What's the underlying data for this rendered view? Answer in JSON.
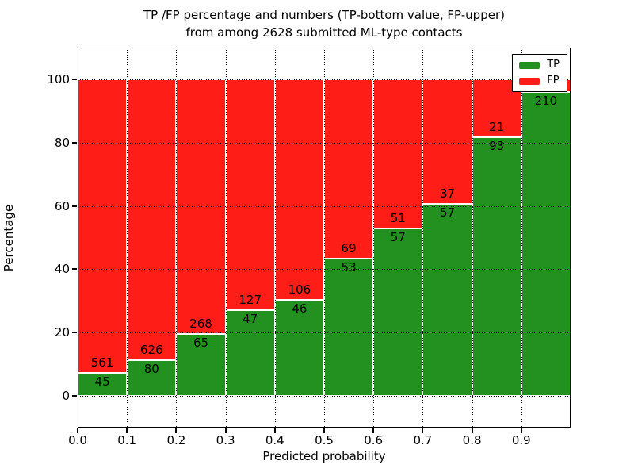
{
  "title": {
    "line1": "TP /FP percentage and numbers (TP-bottom value, FP-upper)",
    "line2": "from among 2628 submitted ML-type contacts"
  },
  "axes": {
    "xlabel": "Predicted probability",
    "ylabel": "Percentage",
    "x_tick_labels": [
      "0.0",
      "0.1",
      "0.2",
      "0.3",
      "0.4",
      "0.5",
      "0.6",
      "0.7",
      "0.8",
      "0.9"
    ],
    "y_tick_labels": [
      "0",
      "20",
      "40",
      "60",
      "80",
      "100"
    ]
  },
  "legend": {
    "entries": [
      {
        "label": "TP",
        "color": "#22911f"
      },
      {
        "label": "FP",
        "color": "#ff1d18"
      }
    ]
  },
  "colors": {
    "tp_green": "#22911f",
    "fp_red": "#ff1d18",
    "grid": "#000000",
    "background": "#ffffff"
  },
  "chart_data": {
    "type": "bar",
    "variant": "stacked-percentage",
    "title": "TP /FP percentage and numbers (TP-bottom value, FP-upper) from among 2628 submitted ML-type contacts",
    "xlabel": "Predicted probability",
    "ylabel": "Percentage",
    "xlim": [
      0.0,
      1.0
    ],
    "ylim": [
      -10,
      110
    ],
    "x_ticks": [
      0.0,
      0.1,
      0.2,
      0.3,
      0.4,
      0.5,
      0.6,
      0.7,
      0.8,
      0.9
    ],
    "y_ticks": [
      0,
      20,
      40,
      60,
      80,
      100
    ],
    "grid": "dotted",
    "legend_position": "upper right",
    "total_submitted_contacts": 2628,
    "bin_width": 0.1,
    "categories": [
      "0.0-0.1",
      "0.1-0.2",
      "0.2-0.3",
      "0.3-0.4",
      "0.4-0.5",
      "0.5-0.6",
      "0.6-0.7",
      "0.7-0.8",
      "0.8-0.9",
      "0.9-1.0"
    ],
    "series": [
      {
        "name": "TP",
        "color": "#22911f",
        "count_labels": [
          "45",
          "80",
          "65",
          "47",
          "46",
          "53",
          "57",
          "57",
          "93",
          "210"
        ],
        "pct_heights": [
          7.4,
          11.3,
          19.5,
          27.0,
          30.3,
          43.4,
          52.8,
          60.6,
          81.6,
          95.9
        ]
      },
      {
        "name": "FP",
        "color": "#ff1d18",
        "count_labels": [
          "561",
          "626",
          "268",
          "127",
          "106",
          "69",
          "51",
          "37",
          "21",
          ""
        ],
        "pct_heights": [
          92.6,
          88.7,
          80.5,
          73.0,
          69.7,
          56.6,
          47.2,
          39.4,
          18.4,
          4.1
        ]
      }
    ]
  }
}
